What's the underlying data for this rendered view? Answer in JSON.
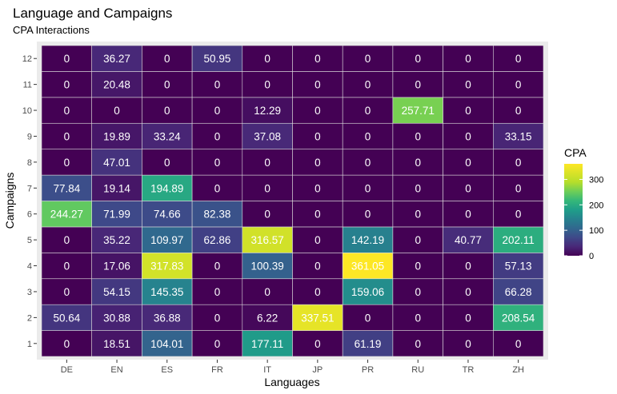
{
  "chart_data": {
    "type": "heatmap",
    "title": "Language and Campaigns",
    "subtitle": "CPA Interactions",
    "xlabel": "Languages",
    "ylabel": "Campaigns",
    "x_categories": [
      "DE",
      "EN",
      "ES",
      "FR",
      "IT",
      "JP",
      "PR",
      "RU",
      "TR",
      "ZH"
    ],
    "y_categories": [
      "1",
      "2",
      "3",
      "4",
      "5",
      "6",
      "7",
      "8",
      "9",
      "10",
      "11",
      "12"
    ],
    "values": [
      [
        0,
        18.51,
        104.01,
        0,
        177.11,
        0,
        61.19,
        0,
        0,
        0
      ],
      [
        50.64,
        30.88,
        36.88,
        0,
        6.22,
        337.51,
        0,
        0,
        0,
        208.54
      ],
      [
        0,
        54.15,
        145.35,
        0,
        0,
        0,
        159.06,
        0,
        0,
        66.28
      ],
      [
        0,
        17.06,
        317.83,
        0,
        100.39,
        0,
        361.05,
        0,
        0,
        57.13
      ],
      [
        0,
        35.22,
        109.97,
        62.86,
        316.57,
        0,
        142.19,
        0,
        40.77,
        202.11
      ],
      [
        244.27,
        71.99,
        74.66,
        82.38,
        0,
        0,
        0,
        0,
        0,
        0
      ],
      [
        77.84,
        19.14,
        194.89,
        0,
        0,
        0,
        0,
        0,
        0,
        0
      ],
      [
        0,
        47.01,
        0,
        0,
        0,
        0,
        0,
        0,
        0,
        0
      ],
      [
        0,
        19.89,
        33.24,
        0,
        37.08,
        0,
        0,
        0,
        0,
        33.15
      ],
      [
        0,
        0,
        0,
        0,
        12.29,
        0,
        0,
        257.71,
        0,
        0
      ],
      [
        0,
        20.48,
        0,
        0,
        0,
        0,
        0,
        0,
        0,
        0
      ],
      [
        0,
        36.27,
        0,
        50.95,
        0,
        0,
        0,
        0,
        0,
        0
      ]
    ],
    "color_scale": "viridis",
    "value_range": [
      0,
      361.05
    ],
    "legend": {
      "title": "CPA",
      "ticks": [
        0,
        100,
        200,
        300
      ],
      "tick_labels": [
        "0",
        "100",
        "200",
        "300"
      ],
      "position": "right"
    },
    "panel_background": "#ebebeb",
    "cell_border": "#dcdcdc"
  }
}
